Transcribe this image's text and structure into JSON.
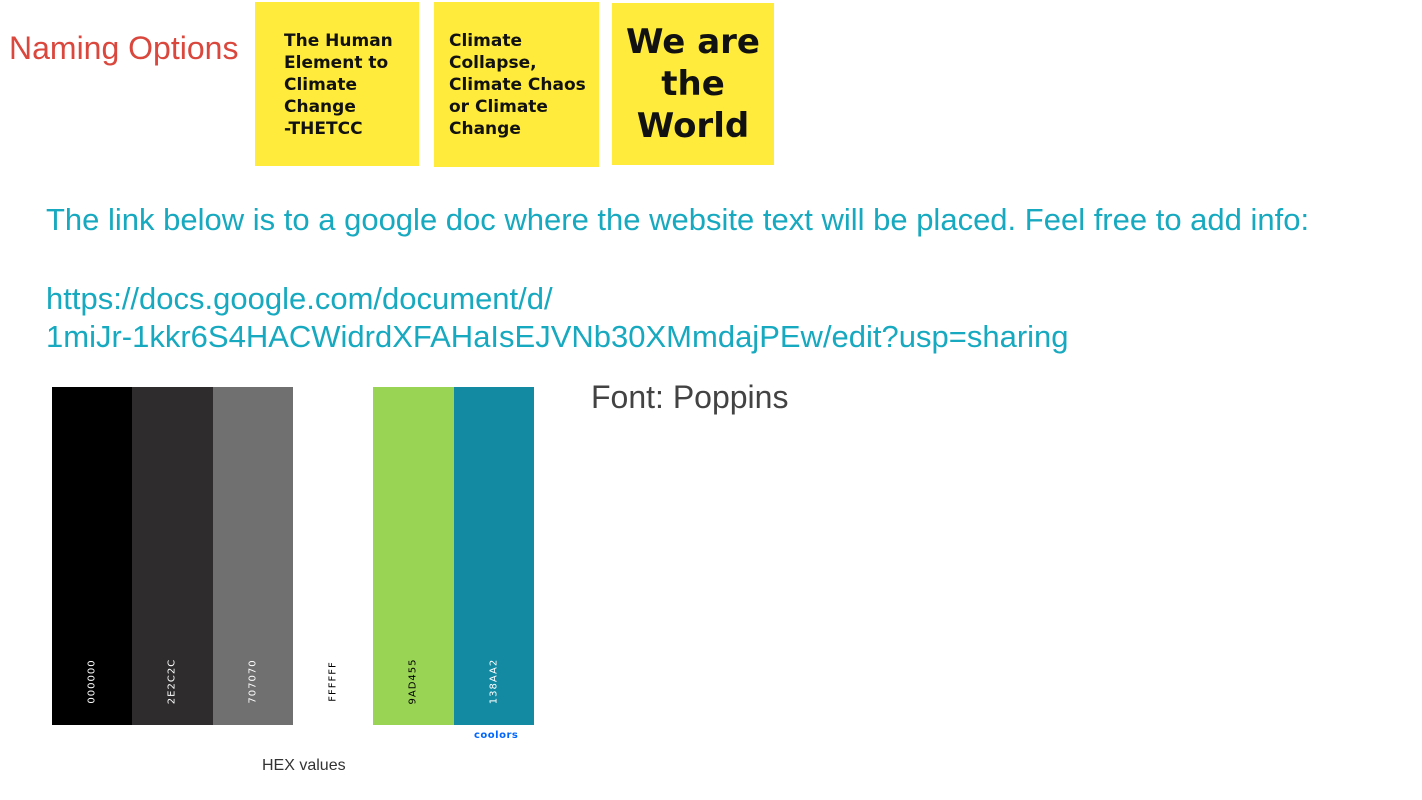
{
  "naming": {
    "title": "Naming Options",
    "options": [
      {
        "text": "The Human\nElement to\nClimate\nChange\n-THETCC",
        "color": "#ffeb3b"
      },
      {
        "text": "Climate\nCollapse,\nClimate Chaos\nor Climate\nChange",
        "color": "#ffeb3b"
      },
      {
        "text": "We are\nthe\nWorld",
        "color": "#ffeb3b"
      }
    ]
  },
  "doc_link": {
    "intro": "The link below is to a google doc where the website text will be placed. Feel free to add info:",
    "url": "https://docs.google.com/document/d/\n1miJr-1kkr6S4HACWidrdXFAHaIsEJVNb30XMmdajPEw/edit?usp=sharing",
    "color": "#17a9bf"
  },
  "palette": {
    "swatches": [
      {
        "hex": "000000",
        "color": "#000000",
        "text_color": "#ffffff"
      },
      {
        "hex": "2E2C2C",
        "color": "#2e2c2c",
        "text_color": "#ffffff"
      },
      {
        "hex": "707070",
        "color": "#707070",
        "text_color": "#ffffff"
      },
      {
        "hex": "FFFFFF",
        "color": "#ffffff",
        "text_color": "#000000"
      },
      {
        "hex": "9AD455",
        "color": "#9ad455",
        "text_color": "#000000"
      },
      {
        "hex": "138AA2",
        "color": "#138aa2",
        "text_color": "#ffffff"
      }
    ],
    "logo": "coolors",
    "caption": "HEX values"
  },
  "font": {
    "label": "Font: Poppins"
  }
}
